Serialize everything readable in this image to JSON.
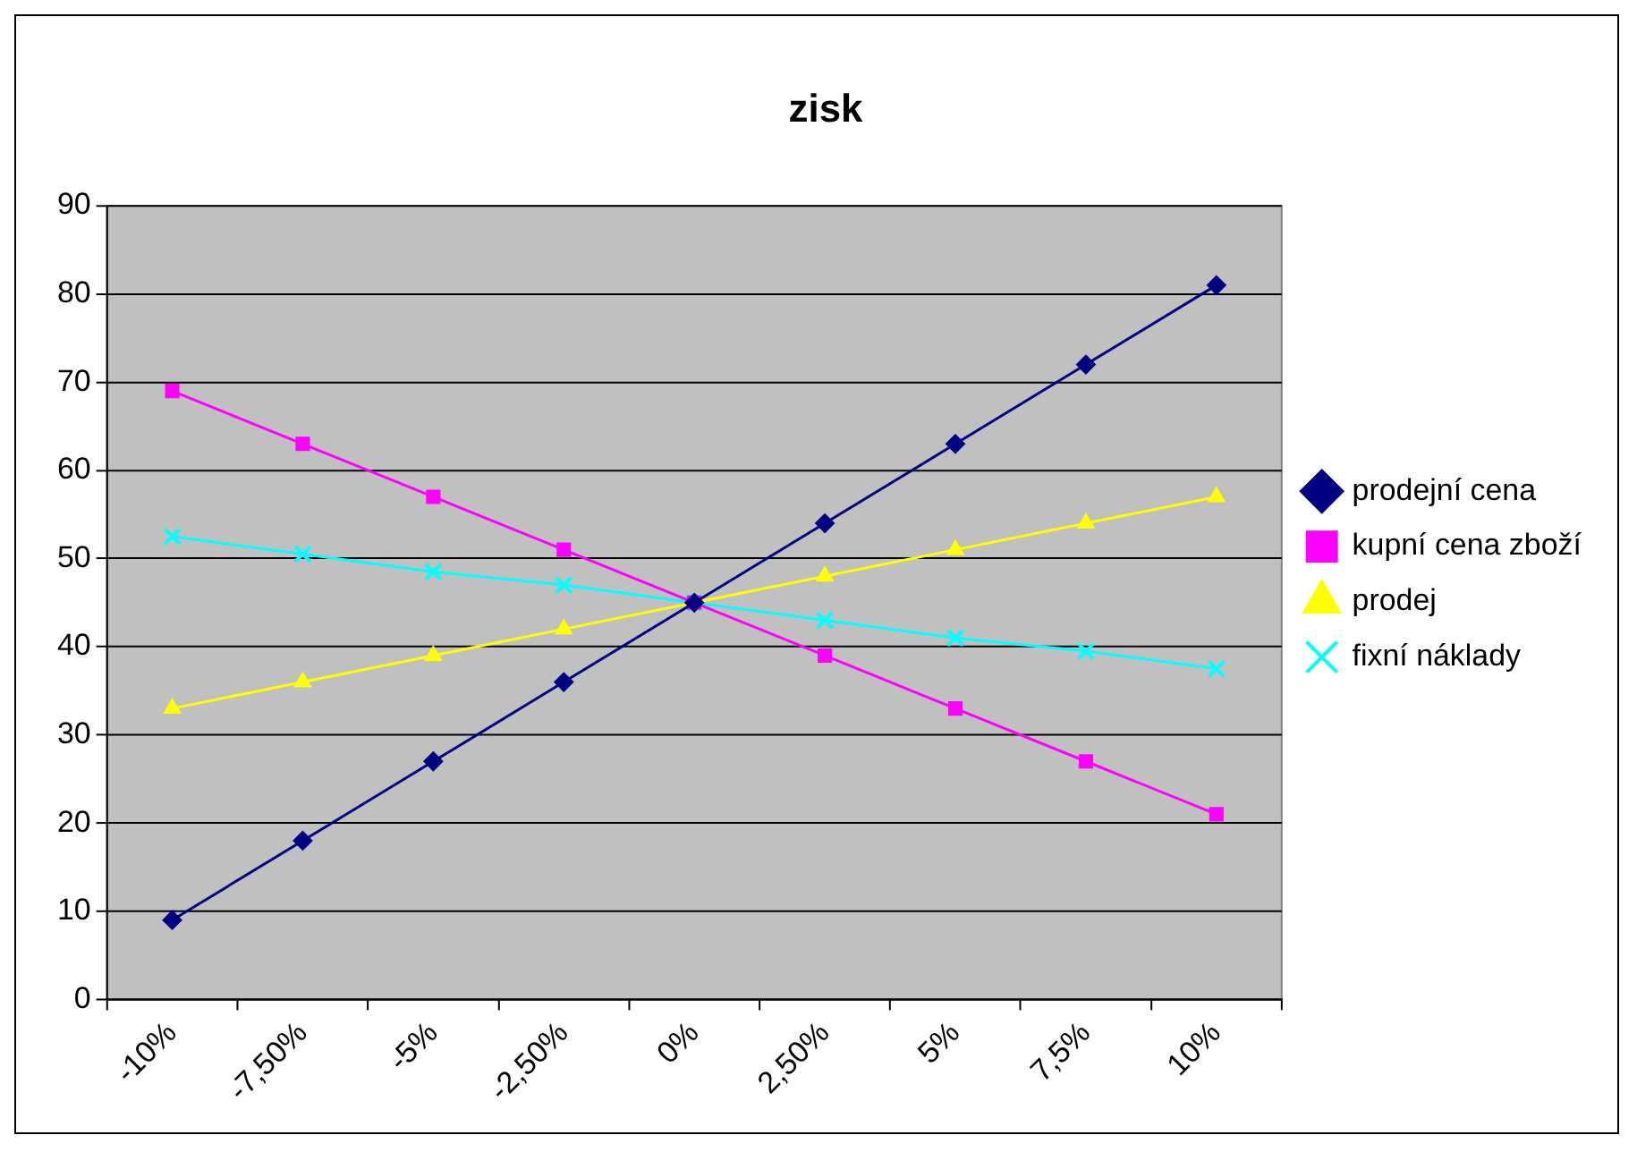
{
  "chart_data": {
    "type": "line",
    "title": "zisk",
    "categories": [
      "-10%",
      "-7,50%",
      "-5%",
      "-2,50%",
      "0%",
      "2,50%",
      "5%",
      "7,5%",
      "10%"
    ],
    "series": [
      {
        "name": "prodejní cena",
        "color": "#000080",
        "marker": "diamond",
        "values": [
          9,
          18,
          27,
          36,
          45,
          54,
          63,
          72,
          81
        ]
      },
      {
        "name": "kupní cena zboží",
        "color": "#ff00ff",
        "marker": "square",
        "values": [
          69,
          63,
          57,
          51,
          45,
          39,
          33,
          27,
          21
        ]
      },
      {
        "name": "prodej",
        "color": "#ffff00",
        "marker": "triangle",
        "values": [
          33,
          36,
          39,
          42,
          45,
          48,
          51,
          54,
          57
        ]
      },
      {
        "name": "fixní náklady",
        "color": "#00ffff",
        "marker": "cross",
        "values": [
          52.5,
          50.5,
          48.5,
          47,
          45,
          43,
          41,
          39.5,
          37.5
        ]
      }
    ],
    "ylim": [
      0,
      90
    ],
    "yticks": [
      0,
      10,
      20,
      30,
      40,
      50,
      60,
      70,
      80,
      90
    ],
    "grid": "y",
    "legend": "right"
  }
}
